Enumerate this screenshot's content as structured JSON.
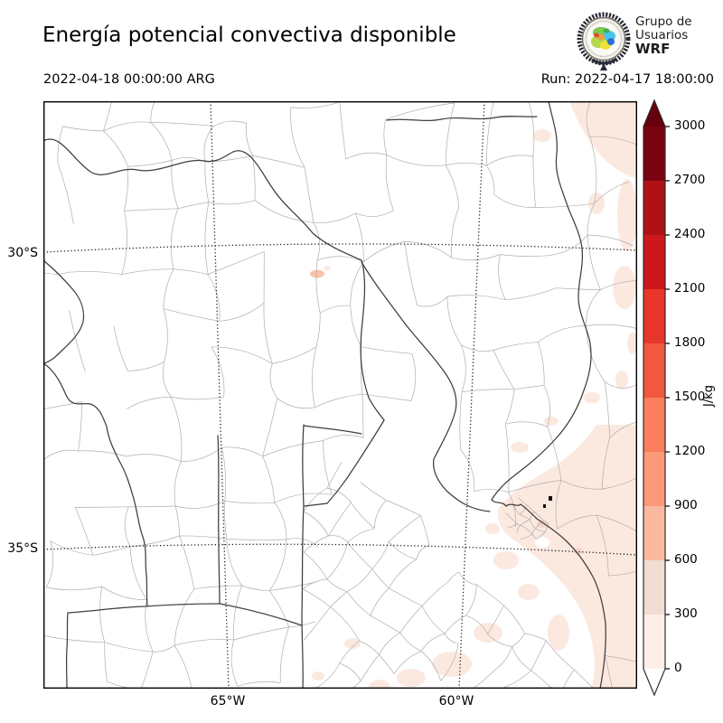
{
  "header": {
    "title": "Energía potencial convectiva disponible",
    "valid_time": "2022-04-18 00:00:00 ARG",
    "run_label": "Run: 2022-04-17 18:00:00",
    "logo": {
      "org_line1": "Grupo de",
      "org_line2": "Usuarios",
      "org_line3": "WRF"
    }
  },
  "map": {
    "y_tick_labels": [
      "30°S",
      "35°S"
    ],
    "x_tick_labels": [
      "65°W",
      "60°W"
    ]
  },
  "colorbar": {
    "unit": "J/kg",
    "tick_labels": [
      "0",
      "300",
      "600",
      "900",
      "1200",
      "1500",
      "1800",
      "2100",
      "2400",
      "2700",
      "3000"
    ],
    "segment_colors": [
      "#fdefe8",
      "#f2ddd3",
      "#fbbaa0",
      "#fa9878",
      "#fa7d5e",
      "#f25740",
      "#e7352a",
      "#cc181c",
      "#b01116",
      "#7a0310"
    ],
    "over_color": "#67000d",
    "under_color": "#ffffff",
    "level_min": 0,
    "level_max": 3000,
    "level_step": 300
  }
}
